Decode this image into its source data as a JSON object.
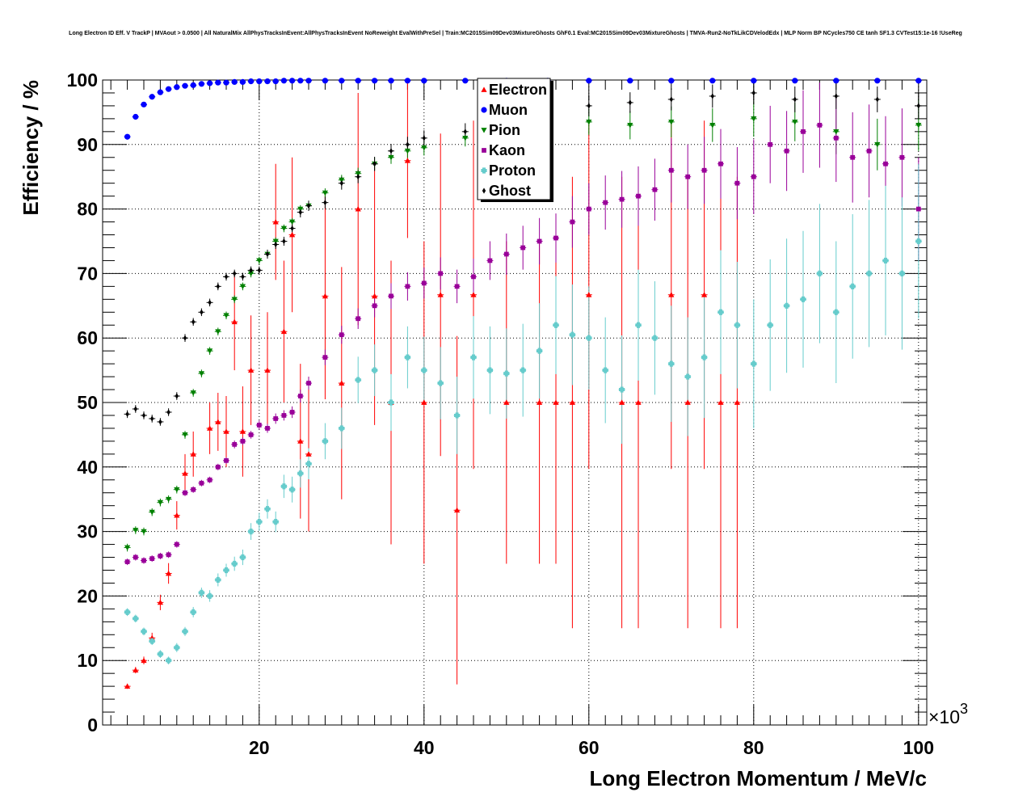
{
  "chart_data": {
    "type": "scatter",
    "title": "Long Electron ID Eff. V TrackP | MVAout > 0.0500 | All NaturalMix AllPhysTracksInEvent:AllPhysTracksInEvent NoReweight EvalWithPreSel | Train:MC2015Sim09Dev03MixtureGhosts GhF0.1 Eval:MC2015Sim09Dev03MixtureGhosts | TMVA-Run2-NoTkLikCDVelodEdx | MLP Norm BP NCycles750 CE tanh SF1.3 CVTest15:1e-16 !UseReg",
    "xlabel": "Long Electron Momentum / MeV/c",
    "ylabel": "Efficiency / %",
    "x_exponent_label": "×10",
    "x_exponent_power": "3",
    "xlim": [
      1000,
      101000
    ],
    "ylim": [
      0,
      100
    ],
    "x_tick_labels": [
      "20",
      "40",
      "60",
      "80",
      "100"
    ],
    "y_tick_labels": [
      "0",
      "10",
      "20",
      "30",
      "40",
      "50",
      "60",
      "70",
      "80",
      "90",
      "100"
    ],
    "grid": true,
    "legend_position": "top-center",
    "series": [
      {
        "name": "Electron",
        "color": "#ff0000",
        "marker": "triangle-up",
        "x": [
          4,
          5,
          6,
          7,
          8,
          9,
          10,
          11,
          12,
          14,
          15,
          16,
          17,
          18,
          19,
          21,
          22,
          23,
          24,
          25,
          26,
          28,
          30,
          32,
          34,
          36,
          38,
          40,
          42,
          44,
          46,
          50,
          54,
          56,
          58,
          60,
          64,
          66,
          70,
          72,
          74,
          76,
          78
        ],
        "y": [
          6.0,
          8.5,
          10.0,
          13.5,
          19.0,
          23.5,
          32.5,
          39.0,
          42.0,
          46.0,
          47.0,
          45.5,
          62.5,
          45.5,
          55.0,
          55.0,
          78.0,
          61.0,
          76.0,
          44.0,
          42.0,
          66.5,
          53.0,
          80.0,
          66.5,
          50.0,
          87.5,
          50.0,
          66.7,
          33.3,
          66.7,
          50.0,
          50.0,
          50.0,
          50.0,
          66.7,
          50.0,
          50.0,
          66.7,
          50.0,
          66.7,
          50.0,
          50.0
        ],
        "err": [
          0.4,
          0.5,
          0.6,
          0.8,
          1.2,
          1.6,
          2.2,
          3.0,
          3.5,
          4.0,
          4.5,
          5.5,
          7.5,
          7.0,
          8.5,
          9.0,
          9.0,
          11.0,
          12.0,
          12.0,
          12.0,
          16.0,
          18.0,
          18.0,
          20.0,
          22.0,
          12.0,
          25.0,
          25.0,
          27.0,
          27.0,
          25.0,
          25.0,
          25.0,
          35.0,
          27.0,
          35.0,
          35.0,
          27.0,
          35.0,
          27.0,
          35.0,
          35.0
        ]
      },
      {
        "name": "Muon",
        "color": "#0000ff",
        "marker": "circle",
        "x": [
          4,
          5,
          6,
          7,
          8,
          9,
          10,
          11,
          12,
          13,
          14,
          15,
          16,
          17,
          18,
          19,
          20,
          21,
          22,
          23,
          24,
          25,
          26,
          28,
          30,
          32,
          34,
          36,
          38,
          40,
          45,
          50,
          55,
          60,
          65,
          70,
          75,
          80,
          85,
          90,
          95,
          100
        ],
        "y": [
          91.2,
          94.3,
          96.2,
          97.4,
          98.1,
          98.6,
          98.9,
          99.1,
          99.2,
          99.4,
          99.5,
          99.6,
          99.6,
          99.7,
          99.7,
          99.8,
          99.8,
          99.8,
          99.8,
          99.9,
          99.9,
          99.9,
          99.9,
          99.9,
          99.9,
          99.9,
          99.9,
          99.9,
          99.9,
          99.9,
          99.9,
          99.9,
          99.9,
          99.9,
          99.9,
          99.9,
          99.9,
          99.9,
          99.9,
          99.9,
          99.9,
          99.9
        ],
        "err": [
          0.2,
          0.2,
          0.15,
          0.1,
          0.1,
          0.1,
          0.1,
          0.1,
          0.1,
          0.1,
          0.1,
          0.1,
          0.1,
          0.1,
          0.1,
          0.1,
          0.1,
          0.1,
          0.1,
          0.1,
          0.1,
          0.1,
          0.1,
          0.1,
          0.1,
          0.1,
          0.1,
          0.1,
          0.1,
          0.1,
          0.1,
          0.1,
          0.1,
          0.1,
          0.1,
          0.1,
          0.1,
          0.1,
          0.1,
          0.1,
          0.1,
          0.1
        ]
      },
      {
        "name": "Pion",
        "color": "#008000",
        "marker": "triangle-down",
        "x": [
          4,
          5,
          6,
          7,
          8,
          9,
          10,
          11,
          12,
          13,
          14,
          15,
          16,
          17,
          18,
          19,
          20,
          21,
          22,
          23,
          24,
          25,
          26,
          28,
          30,
          32,
          34,
          36,
          38,
          40,
          45,
          50,
          55,
          60,
          65,
          70,
          75,
          80,
          85,
          90,
          95,
          100
        ],
        "y": [
          27.5,
          30.2,
          30.0,
          33.0,
          34.5,
          35.0,
          36.5,
          45.0,
          51.5,
          54.5,
          58.0,
          61.0,
          63.5,
          66.0,
          68.0,
          70.0,
          72.0,
          73.0,
          75.0,
          77.0,
          78.0,
          80.0,
          80.5,
          82.5,
          84.5,
          85.5,
          87.0,
          88.0,
          89.0,
          89.5,
          91.0,
          92.0,
          93.0,
          93.5,
          93.0,
          93.5,
          93.0,
          94.0,
          93.5,
          92.0,
          90.0,
          93.0
        ],
        "err": [
          0.6,
          0.6,
          0.6,
          0.6,
          0.6,
          0.6,
          0.6,
          0.6,
          0.6,
          0.6,
          0.6,
          0.6,
          0.6,
          0.6,
          0.6,
          0.6,
          0.6,
          0.6,
          0.6,
          0.6,
          0.6,
          0.6,
          0.6,
          0.7,
          0.8,
          0.9,
          1.0,
          1.0,
          1.1,
          1.2,
          1.3,
          1.5,
          1.7,
          2.0,
          2.2,
          2.4,
          2.6,
          2.8,
          3.0,
          3.5,
          4.0,
          4.0
        ]
      },
      {
        "name": "Kaon",
        "color": "#990099",
        "marker": "square",
        "x": [
          4,
          5,
          6,
          7,
          8,
          9,
          10,
          11,
          12,
          13,
          14,
          15,
          16,
          17,
          18,
          19,
          20,
          21,
          22,
          23,
          24,
          25,
          26,
          28,
          30,
          32,
          34,
          36,
          38,
          40,
          42,
          44,
          46,
          48,
          50,
          52,
          54,
          56,
          58,
          60,
          62,
          64,
          66,
          68,
          70,
          72,
          74,
          76,
          78,
          80,
          82,
          84,
          86,
          88,
          90,
          92,
          94,
          96,
          98,
          100
        ],
        "y": [
          25.3,
          26.0,
          25.5,
          25.8,
          26.2,
          26.4,
          28.0,
          36.0,
          36.5,
          37.5,
          38.0,
          40.0,
          41.0,
          43.5,
          44.0,
          45.0,
          46.5,
          46.0,
          47.5,
          48.0,
          48.5,
          51.0,
          53.0,
          57.0,
          60.5,
          63.0,
          65.0,
          66.5,
          68.0,
          68.5,
          70.0,
          68.0,
          69.5,
          72.0,
          73.0,
          74.0,
          75.0,
          75.5,
          78.0,
          80.0,
          81.0,
          81.5,
          82.0,
          83.0,
          86.0,
          85.0,
          86.0,
          87.0,
          84.0,
          85.0,
          90.0,
          89.0,
          92.0,
          93.0,
          91.0,
          88.0,
          89.0,
          87.0,
          88.0,
          80.0
        ],
        "err": [
          0.5,
          0.5,
          0.5,
          0.5,
          0.5,
          0.5,
          0.5,
          0.5,
          0.5,
          0.5,
          0.5,
          0.5,
          0.5,
          0.6,
          0.6,
          0.6,
          0.7,
          0.7,
          0.8,
          0.8,
          0.9,
          1.0,
          1.0,
          1.2,
          1.4,
          1.6,
          1.8,
          2.0,
          2.2,
          2.4,
          2.5,
          2.6,
          2.8,
          3.0,
          3.2,
          3.4,
          3.6,
          3.8,
          4.0,
          4.0,
          4.2,
          4.4,
          4.6,
          4.8,
          5.0,
          5.0,
          5.2,
          5.4,
          5.6,
          5.8,
          6.0,
          6.2,
          6.4,
          6.6,
          6.8,
          7.0,
          7.2,
          7.4,
          7.6,
          8.0
        ]
      },
      {
        "name": "Proton",
        "color": "#66cccc",
        "marker": "cross",
        "x": [
          4,
          5,
          6,
          7,
          8,
          9,
          10,
          11,
          12,
          13,
          14,
          15,
          16,
          17,
          18,
          19,
          20,
          21,
          22,
          23,
          24,
          25,
          26,
          28,
          30,
          32,
          34,
          36,
          38,
          40,
          42,
          44,
          46,
          48,
          50,
          52,
          54,
          56,
          58,
          60,
          62,
          64,
          66,
          68,
          70,
          72,
          74,
          76,
          78,
          80,
          82,
          84,
          86,
          88,
          90,
          92,
          94,
          96,
          98,
          100
        ],
        "y": [
          17.5,
          16.5,
          14.5,
          13.0,
          11.0,
          10.0,
          12.0,
          14.5,
          17.5,
          20.5,
          20.0,
          22.5,
          24.0,
          25.0,
          26.0,
          30.0,
          31.5,
          33.5,
          31.5,
          37.0,
          36.5,
          39.0,
          40.5,
          44.0,
          46.0,
          53.5,
          55.0,
          50.0,
          57.0,
          55.0,
          53.0,
          48.0,
          57.0,
          55.0,
          54.5,
          55.0,
          58.0,
          62.0,
          60.5,
          60.0,
          55.0,
          52.0,
          62.0,
          60.0,
          56.0,
          54.0,
          57.0,
          64.0,
          62.0,
          56.0,
          62.0,
          65.0,
          66.0,
          70.0,
          64.0,
          68.0,
          70.0,
          72.0,
          70.0,
          75.0
        ],
        "err": [
          0.6,
          0.6,
          0.6,
          0.6,
          0.6,
          0.6,
          0.7,
          0.7,
          0.8,
          0.8,
          0.9,
          1.0,
          1.0,
          1.1,
          1.2,
          1.3,
          1.4,
          1.5,
          1.6,
          1.8,
          2.0,
          2.2,
          2.4,
          2.8,
          3.2,
          3.6,
          4.0,
          4.4,
          4.8,
          5.2,
          5.6,
          6.0,
          6.4,
          6.8,
          7.0,
          7.2,
          7.4,
          7.6,
          7.8,
          8.0,
          8.2,
          8.4,
          8.6,
          8.8,
          9.0,
          9.2,
          9.4,
          9.6,
          9.8,
          10.0,
          10.2,
          10.4,
          10.6,
          10.8,
          11.0,
          11.2,
          11.4,
          11.6,
          11.8,
          12.0
        ]
      },
      {
        "name": "Ghost",
        "color": "#000000",
        "marker": "diamond",
        "x": [
          4,
          5,
          6,
          7,
          8,
          9,
          10,
          11,
          12,
          13,
          14,
          15,
          16,
          17,
          18,
          19,
          20,
          21,
          22,
          23,
          24,
          25,
          26,
          28,
          30,
          32,
          34,
          36,
          38,
          40,
          45,
          50,
          55,
          60,
          65,
          70,
          75,
          80,
          85,
          90,
          95,
          100
        ],
        "y": [
          48.2,
          49.0,
          48.0,
          47.5,
          47.0,
          48.5,
          51.0,
          60.0,
          62.5,
          64.0,
          65.5,
          68.0,
          69.5,
          70.0,
          69.5,
          70.5,
          70.5,
          73.0,
          74.5,
          75.0,
          77.0,
          79.5,
          80.5,
          81.0,
          84.0,
          85.0,
          87.0,
          89.0,
          90.0,
          91.0,
          92.0,
          94.0,
          95.0,
          96.0,
          96.5,
          97.0,
          97.5,
          98.0,
          97.0,
          97.5,
          97.0,
          96.0
        ],
        "err": [
          0.6,
          0.6,
          0.6,
          0.6,
          0.6,
          0.6,
          0.6,
          0.6,
          0.6,
          0.6,
          0.6,
          0.6,
          0.6,
          0.6,
          0.6,
          0.6,
          0.6,
          0.7,
          0.7,
          0.7,
          0.8,
          0.8,
          0.8,
          0.9,
          1.0,
          1.0,
          1.1,
          1.1,
          1.2,
          1.2,
          1.3,
          1.4,
          1.5,
          1.6,
          1.6,
          1.7,
          1.8,
          1.8,
          2.0,
          2.0,
          2.0,
          2.0
        ]
      }
    ]
  }
}
